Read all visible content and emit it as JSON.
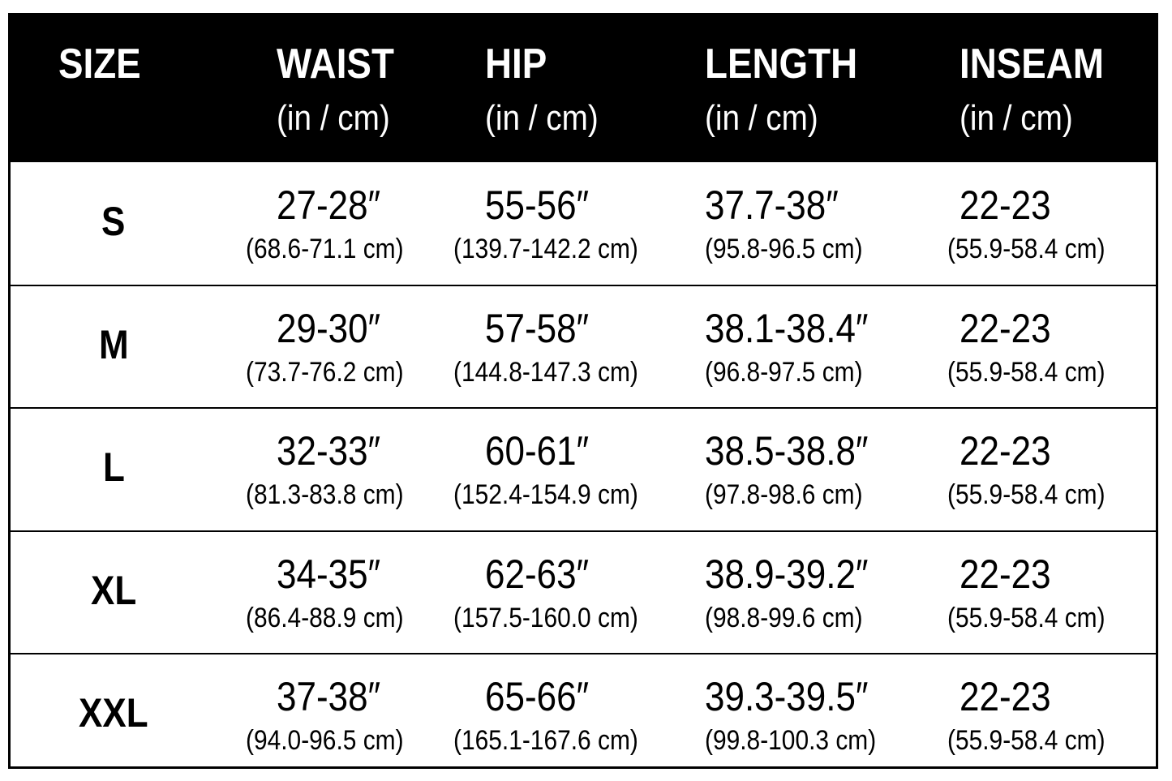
{
  "table": {
    "header": [
      {
        "title": "SIZE"
      },
      {
        "title": "WAIST",
        "unit": "(in / cm)"
      },
      {
        "title": "HIP",
        "unit": "(in / cm)"
      },
      {
        "title": "LENGTH",
        "unit": "(in / cm)"
      },
      {
        "title": "INSEAM",
        "unit": "(in / cm)"
      }
    ],
    "rows": [
      [
        "S",
        {
          "in": "27-28″",
          "cm": "(68.6-71.1 cm)"
        },
        {
          "in": "55-56″",
          "cm": "(139.7-142.2 cm)"
        },
        {
          "in": "37.7-38″",
          "cm": "(95.8-96.5 cm)"
        },
        {
          "in": "22-23",
          "cm": "(55.9-58.4 cm)"
        }
      ],
      [
        "M",
        {
          "in": "29-30″",
          "cm": "(73.7-76.2 cm)"
        },
        {
          "in": "57-58″",
          "cm": "(144.8-147.3 cm)"
        },
        {
          "in": "38.1-38.4″",
          "cm": "(96.8-97.5 cm)"
        },
        {
          "in": "22-23",
          "cm": "(55.9-58.4 cm)"
        }
      ],
      [
        "L",
        {
          "in": "32-33″",
          "cm": "(81.3-83.8 cm)"
        },
        {
          "in": "60-61″",
          "cm": "(152.4-154.9 cm)"
        },
        {
          "in": "38.5-38.8″",
          "cm": "(97.8-98.6 cm)"
        },
        {
          "in": "22-23",
          "cm": "(55.9-58.4 cm)"
        }
      ],
      [
        "XL",
        {
          "in": "34-35″",
          "cm": "(86.4-88.9 cm)"
        },
        {
          "in": "62-63″",
          "cm": "(157.5-160.0 cm)"
        },
        {
          "in": "38.9-39.2″",
          "cm": "(98.8-99.6 cm)"
        },
        {
          "in": "22-23",
          "cm": "(55.9-58.4 cm)"
        }
      ],
      [
        "XXL",
        {
          "in": "37-38″",
          "cm": "(94.0-96.5 cm)"
        },
        {
          "in": "65-66″",
          "cm": "(165.1-167.6 cm)"
        },
        {
          "in": "39.3-39.5″",
          "cm": "(99.8-100.3 cm)"
        },
        {
          "in": "22-23",
          "cm": "(55.9-58.4 cm)"
        }
      ]
    ]
  }
}
